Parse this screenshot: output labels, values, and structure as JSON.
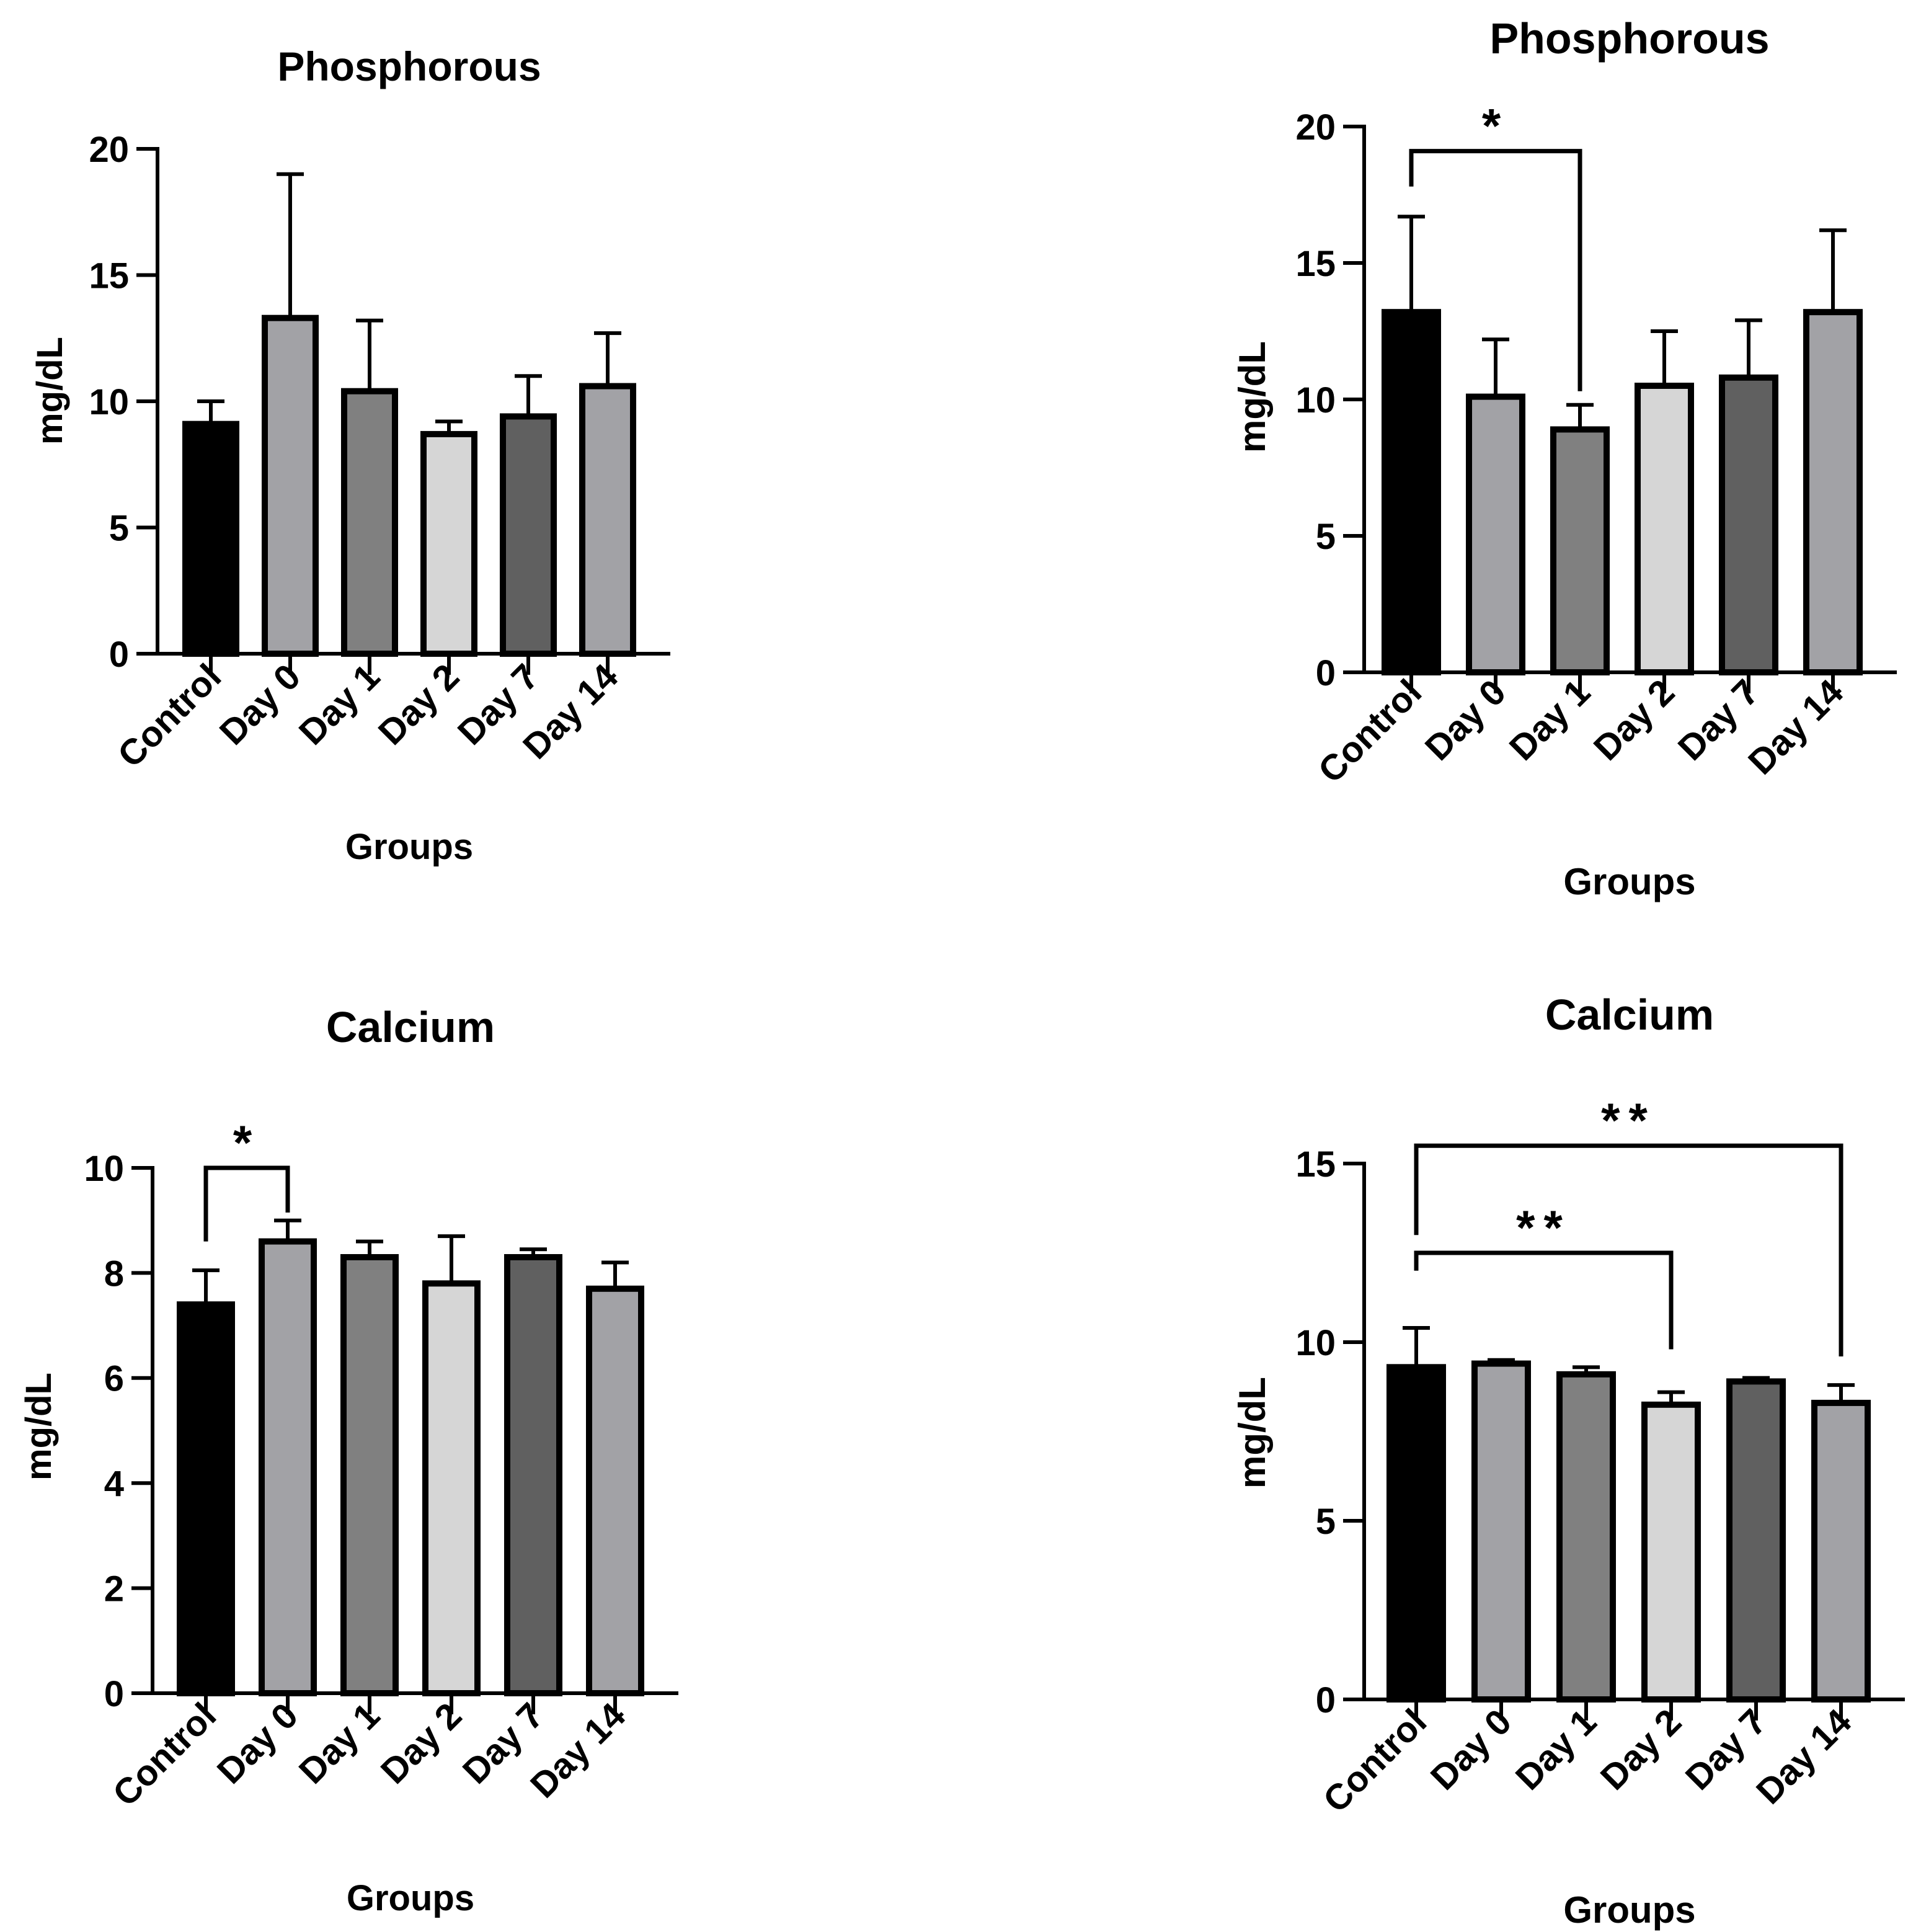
{
  "chart_data": [
    {
      "type": "bar",
      "title": "Phosphorous",
      "xlabel": "Groups",
      "ylabel": "mg/dL",
      "categories": [
        "Control",
        "Day 0",
        "Day 1",
        "Day 2",
        "Day 7",
        "Day 14"
      ],
      "values": [
        9.1,
        13.3,
        10.4,
        8.7,
        9.4,
        10.6
      ],
      "error_upper": [
        10.0,
        19.0,
        13.2,
        9.2,
        11.0,
        12.7
      ],
      "bar_colors": [
        "#000000",
        "#a2a2a6",
        "#808080",
        "#d6d6d6",
        "#606060",
        "#a2a2a6"
      ],
      "ylim": [
        0,
        20
      ],
      "yticks": [
        0,
        5,
        10,
        15,
        20
      ],
      "ytick_labels": [
        "0",
        "5",
        "10",
        "15",
        "20"
      ],
      "significance": []
    },
    {
      "type": "bar",
      "title": "Phosphorous",
      "xlabel": "Groups",
      "ylabel": "mg/dL",
      "categories": [
        "Control",
        "Day 0",
        "Day 1",
        "Day 2",
        "Day 7",
        "Day 14"
      ],
      "values": [
        13.2,
        10.1,
        8.9,
        10.5,
        10.8,
        13.2
      ],
      "error_upper": [
        16.7,
        12.2,
        9.8,
        12.5,
        12.9,
        16.2
      ],
      "bar_colors": [
        "#000000",
        "#a2a2a6",
        "#808080",
        "#d6d6d6",
        "#606060",
        "#a2a2a6"
      ],
      "ylim": [
        0,
        20
      ],
      "yticks": [
        0,
        5,
        10,
        15,
        20
      ],
      "ytick_labels": [
        "0",
        "5",
        "10",
        "15",
        "20"
      ],
      "significance": [
        {
          "from": "Control",
          "to": "Day 1",
          "label": "*",
          "y": 19.1,
          "from_bottom": 17.8,
          "to_bottom": 10.3
        }
      ]
    },
    {
      "type": "bar",
      "title": "Calcium",
      "xlabel": "Groups",
      "ylabel": "mg/dL",
      "categories": [
        "Control",
        "Day 0",
        "Day 1",
        "Day 2",
        "Day 7",
        "Day 14"
      ],
      "values": [
        7.4,
        8.6,
        8.3,
        7.8,
        8.3,
        7.7
      ],
      "error_upper": [
        8.05,
        9.0,
        8.6,
        8.7,
        8.45,
        8.2
      ],
      "bar_colors": [
        "#000000",
        "#a2a2a6",
        "#808080",
        "#d6d6d6",
        "#606060",
        "#a2a2a6"
      ],
      "ylim": [
        0,
        10
      ],
      "yticks": [
        0,
        2,
        4,
        6,
        8,
        10
      ],
      "ytick_labels": [
        "0",
        "2",
        "4",
        "6",
        "8",
        "10"
      ],
      "significance": [
        {
          "from": "Control",
          "to": "Day 0",
          "label": "*",
          "y": 10.0,
          "from_bottom": 8.6,
          "to_bottom": 9.15
        }
      ]
    },
    {
      "type": "bar",
      "title": "Calcium",
      "xlabel": "Groups",
      "ylabel": "mg/dL",
      "categories": [
        "Control",
        "Day 0",
        "Day 1",
        "Day 2",
        "Day 7",
        "Day 14"
      ],
      "values": [
        9.3,
        9.4,
        9.1,
        8.25,
        8.9,
        8.3
      ],
      "error_upper": [
        10.4,
        9.5,
        9.3,
        8.6,
        9.0,
        8.8
      ],
      "bar_colors": [
        "#000000",
        "#a2a2a6",
        "#808080",
        "#d6d6d6",
        "#606060",
        "#a2a2a6"
      ],
      "ylim": [
        0,
        15
      ],
      "yticks": [
        0,
        5,
        10,
        15
      ],
      "ytick_labels": [
        "0",
        "5",
        "10",
        "15"
      ],
      "significance": [
        {
          "from": "Control",
          "to": "Day 2",
          "label": "**",
          "y": 12.5,
          "from_bottom": 12.0,
          "to_bottom": 9.8
        },
        {
          "from": "Control",
          "to": "Day 14",
          "label": "**",
          "y": 15.5,
          "from_bottom": 13.0,
          "to_bottom": 9.6
        }
      ]
    }
  ]
}
